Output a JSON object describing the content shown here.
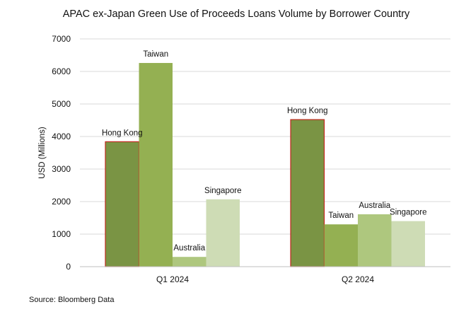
{
  "chart_data": {
    "type": "bar",
    "title": "APAC ex-Japan Green Use of Proceeds Loans Volume by Borrower Country",
    "xlabel": "",
    "ylabel": "USD (Millions)",
    "ylim": [
      0,
      7000
    ],
    "yticks": [
      0,
      1000,
      2000,
      3000,
      4000,
      5000,
      6000,
      7000
    ],
    "grid": true,
    "legend": "none",
    "source": "Source: Bloomberg Data",
    "groups": [
      {
        "category": "Q1 2024",
        "bars": [
          {
            "label": "Hong Kong",
            "value": 3840,
            "color": "#7a9444",
            "outline": "#c0281e"
          },
          {
            "label": "Taiwan",
            "value": 6260,
            "color": "#94b052",
            "outline": ""
          },
          {
            "label": "Australia",
            "value": 300,
            "color": "#aec77e",
            "outline": ""
          },
          {
            "label": "Singapore",
            "value": 2070,
            "color": "#cedcb5",
            "outline": ""
          }
        ]
      },
      {
        "category": "Q2 2024",
        "bars": [
          {
            "label": "Hong Kong",
            "value": 4520,
            "color": "#7a9444",
            "outline": "#c0281e"
          },
          {
            "label": "Taiwan",
            "value": 1300,
            "color": "#94b052",
            "outline": ""
          },
          {
            "label": "Australia",
            "value": 1610,
            "color": "#aec77e",
            "outline": ""
          },
          {
            "label": "Singapore",
            "value": 1400,
            "color": "#cedcb5",
            "outline": ""
          }
        ]
      }
    ]
  }
}
